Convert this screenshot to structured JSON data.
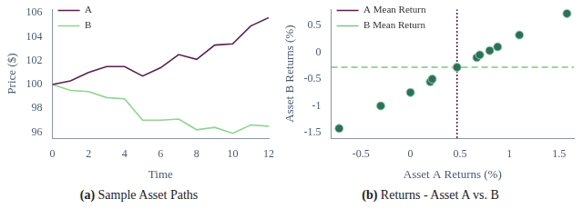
{
  "chart_data": [
    {
      "type": "line",
      "title": "(a) Sample Asset Paths",
      "x_label": "Time",
      "y_label": "Price ($)",
      "x": [
        0,
        1,
        2,
        3,
        4,
        5,
        6,
        7,
        8,
        9,
        10,
        11,
        12
      ],
      "series": [
        {
          "name": "A",
          "color": "#5b1f4f",
          "line_style": "solid",
          "values": [
            100,
            100.3,
            101,
            101.5,
            101.5,
            100.7,
            101.4,
            102.5,
            102.1,
            103.3,
            103.4,
            104.9,
            105.6
          ]
        },
        {
          "name": "B",
          "color": "#90d490",
          "line_style": "solid",
          "values": [
            100,
            99.5,
            99.4,
            98.9,
            98.8,
            97,
            97,
            97.1,
            96.2,
            96.4,
            95.9,
            96.6,
            96.5
          ]
        }
      ],
      "xlim": [
        0,
        12
      ],
      "xticks": [
        0,
        2,
        4,
        6,
        8,
        10,
        12
      ],
      "ylim": [
        95.5,
        106.3
      ],
      "yticks": [
        96,
        98,
        100,
        102,
        104,
        106
      ],
      "grid": false,
      "legend": "top left"
    },
    {
      "type": "scatter",
      "title": "(b) Returns - Asset A vs. B",
      "x_label": "Asset A Returns (%)",
      "y_label": "Asset B Returns (%)",
      "series": [
        {
          "type": "scatter",
          "color": "#2f6e5a",
          "marker": "circle",
          "x": [
            -0.72,
            -0.3,
            0,
            0.2,
            0.22,
            0.47,
            0.67,
            0.7,
            0.8,
            0.88,
            1.1,
            1.58
          ],
          "values": [
            -1.42,
            -1.0,
            -0.75,
            -0.55,
            -0.5,
            -0.28,
            -0.1,
            -0.05,
            0.03,
            0.1,
            0.32,
            0.72
          ]
        },
        {
          "type": "line",
          "name": "A Mean Return",
          "color": "#5b1f4f",
          "line_style": "dotted",
          "x": [
            0.47,
            0.47
          ],
          "values": [
            -1.6,
            0.8
          ]
        },
        {
          "type": "line",
          "name": "B Mean Return",
          "color": "#7cc87c",
          "line_style": "dashed",
          "x": [
            -0.8,
            1.65
          ],
          "values": [
            -0.28,
            -0.28
          ]
        }
      ],
      "xlim": [
        -0.8,
        1.65
      ],
      "xticks": [
        -0.5,
        0,
        0.5,
        1,
        1.5
      ],
      "ylim": [
        -1.6,
        0.8
      ],
      "yticks": [
        -1.5,
        -1,
        -0.5,
        0,
        0.5
      ],
      "grid": false,
      "legend": "top left"
    }
  ]
}
